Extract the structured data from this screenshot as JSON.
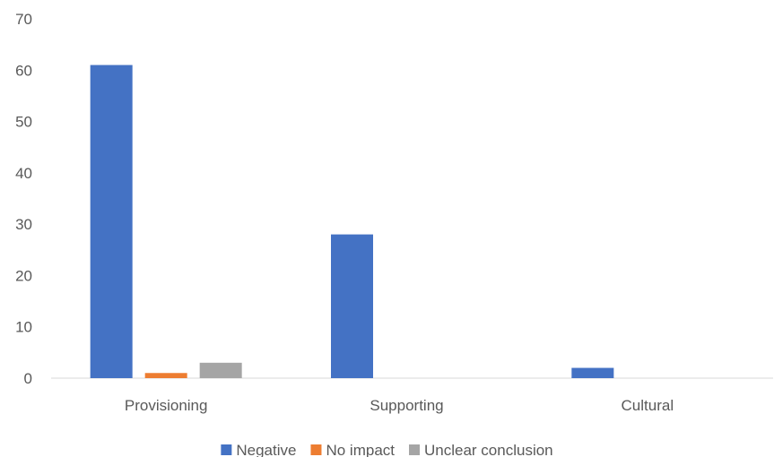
{
  "chart_data": {
    "type": "bar",
    "title": "",
    "xlabel": "",
    "ylabel": "",
    "categories": [
      "Provisioning",
      "Supporting",
      "Cultural"
    ],
    "series": [
      {
        "name": "Negative",
        "color": "#4472C4",
        "values": [
          61,
          28,
          2
        ]
      },
      {
        "name": "No impact",
        "color": "#ED7D31",
        "values": [
          1,
          0,
          0
        ]
      },
      {
        "name": "Unclear conclusion",
        "color": "#A5A5A5",
        "values": [
          3,
          0,
          0
        ]
      }
    ],
    "ylim": [
      0,
      70
    ],
    "yticks": [
      "0",
      "10",
      "20",
      "30",
      "40",
      "50",
      "60",
      "70"
    ],
    "grid": false,
    "legend": "bottom"
  }
}
